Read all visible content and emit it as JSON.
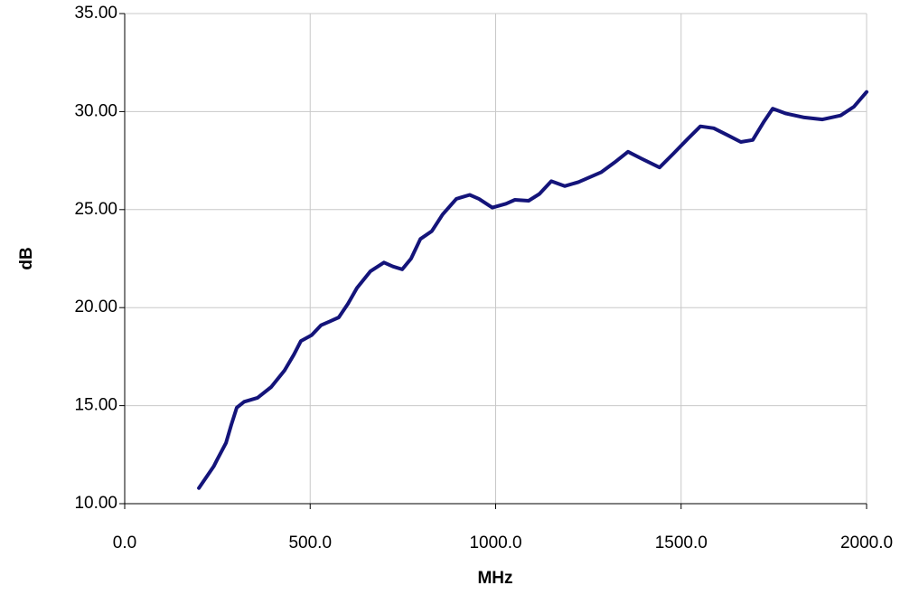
{
  "chart_data": {
    "type": "line",
    "x_label": "MHz",
    "y_label": "dB",
    "xlim": [
      0,
      2000
    ],
    "xticks": [
      {
        "value": 0,
        "label": "0.0"
      },
      {
        "value": 500,
        "label": "500.0"
      },
      {
        "value": 1000,
        "label": "1000.0"
      },
      {
        "value": 1500,
        "label": "1500.0"
      },
      {
        "value": 2000,
        "label": "2000.0"
      }
    ],
    "ylim": [
      10,
      35
    ],
    "yticks": [
      {
        "value": 10,
        "label": "10.00"
      },
      {
        "value": 15,
        "label": "15.00"
      },
      {
        "value": 20,
        "label": "20.00"
      },
      {
        "value": 25,
        "label": "25.00"
      },
      {
        "value": 30,
        "label": "30.00"
      },
      {
        "value": 35,
        "label": "35.00"
      }
    ],
    "grid": true,
    "x": [
      200,
      240,
      248,
      273,
      287,
      302,
      322,
      358,
      395,
      431,
      456,
      475,
      504,
      529,
      553,
      577,
      602,
      626,
      662,
      699,
      723,
      748,
      772,
      797,
      828,
      857,
      894,
      930,
      955,
      991,
      1028,
      1052,
      1089,
      1118,
      1150,
      1186,
      1223,
      1284,
      1320,
      1357,
      1393,
      1442,
      1479,
      1515,
      1552,
      1588,
      1625,
      1661,
      1693,
      1722,
      1747,
      1783,
      1832,
      1881,
      1930,
      1966,
      2000
    ],
    "series": [
      {
        "color": "#14147a",
        "values": [
          10.8,
          11.9,
          12.2,
          13.1,
          14.0,
          14.9,
          15.2,
          15.4,
          15.95,
          16.8,
          17.6,
          18.3,
          18.6,
          19.1,
          19.3,
          19.5,
          20.2,
          21.0,
          21.85,
          22.3,
          22.1,
          21.95,
          22.5,
          23.5,
          23.9,
          24.75,
          25.55,
          25.75,
          25.55,
          25.1,
          25.3,
          25.5,
          25.45,
          25.8,
          26.45,
          26.2,
          26.4,
          26.9,
          27.4,
          27.95,
          27.6,
          27.15,
          27.85,
          28.55,
          29.25,
          29.15,
          28.8,
          28.45,
          28.55,
          29.45,
          30.15,
          29.9,
          29.7,
          29.6,
          29.8,
          30.25,
          31.0
        ]
      }
    ]
  }
}
